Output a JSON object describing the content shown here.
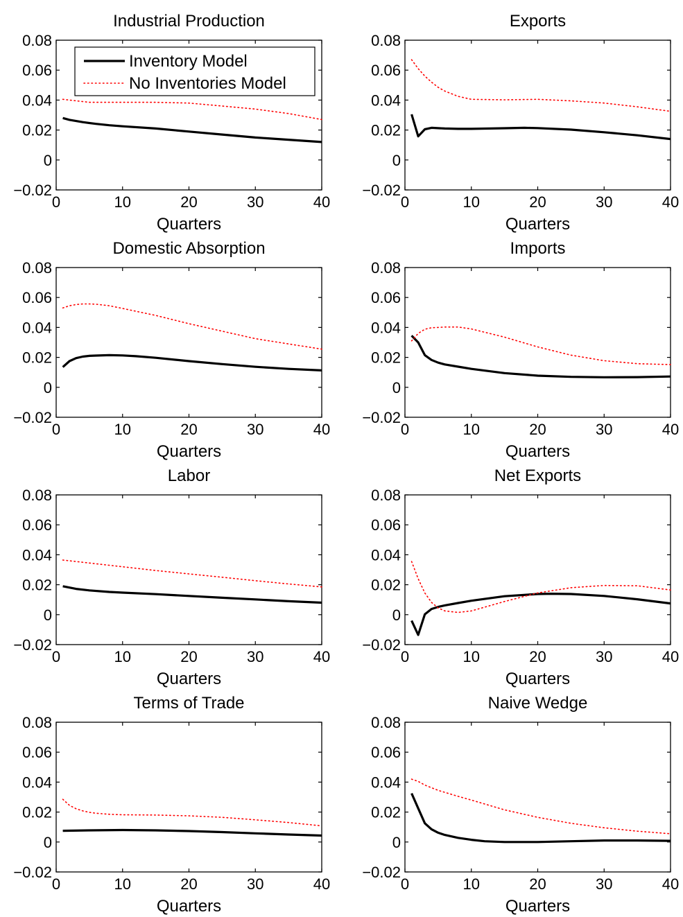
{
  "chart_data": [
    {
      "type": "line",
      "title": "Industrial Production",
      "xlabel": "Quarters",
      "xlim": [
        0,
        40
      ],
      "ylim": [
        -0.02,
        0.08
      ],
      "xticks": [
        "0",
        "10",
        "20",
        "30",
        "40"
      ],
      "yticks": [
        "−0.02",
        "0",
        "0.02",
        "0.04",
        "0.06",
        "0.08"
      ],
      "legend": {
        "position": "top-left",
        "entries": [
          "Inventory Model",
          "No Inventories Model"
        ]
      },
      "series": [
        {
          "name": "Inventory Model",
          "style": "solid",
          "color": "#000000",
          "x": [
            1,
            2,
            4,
            6,
            8,
            10,
            15,
            20,
            25,
            30,
            35,
            40
          ],
          "y": [
            0.028,
            0.0268,
            0.0253,
            0.0241,
            0.0232,
            0.0225,
            0.021,
            0.019,
            0.017,
            0.015,
            0.0135,
            0.012
          ]
        },
        {
          "name": "No Inventories Model",
          "style": "dotted",
          "color": "#ff0000",
          "x": [
            1,
            5,
            10,
            15,
            20,
            25,
            30,
            35,
            40
          ],
          "y": [
            0.0405,
            0.0385,
            0.0385,
            0.0385,
            0.038,
            0.036,
            0.034,
            0.031,
            0.027
          ]
        }
      ]
    },
    {
      "type": "line",
      "title": "Exports",
      "xlabel": "Quarters",
      "xlim": [
        0,
        40
      ],
      "ylim": [
        -0.02,
        0.08
      ],
      "xticks": [
        "0",
        "10",
        "20",
        "30",
        "40"
      ],
      "yticks": [
        "−0.02",
        "0",
        "0.02",
        "0.04",
        "0.06",
        "0.08"
      ],
      "series": [
        {
          "name": "Inventory Model",
          "style": "solid",
          "color": "#000000",
          "x": [
            1,
            2,
            3,
            4,
            6,
            8,
            10,
            15,
            18,
            20,
            25,
            30,
            35,
            40
          ],
          "y": [
            0.0305,
            0.0158,
            0.0205,
            0.0215,
            0.021,
            0.0208,
            0.0208,
            0.0212,
            0.0215,
            0.0213,
            0.0203,
            0.0185,
            0.0165,
            0.014
          ]
        },
        {
          "name": "No Inventories Model",
          "style": "dotted",
          "color": "#ff0000",
          "x": [
            1,
            2,
            3,
            4,
            5,
            6,
            8,
            10,
            15,
            20,
            25,
            30,
            35,
            40
          ],
          "y": [
            0.067,
            0.061,
            0.056,
            0.052,
            0.0485,
            0.046,
            0.0425,
            0.0405,
            0.0402,
            0.0405,
            0.0395,
            0.038,
            0.0355,
            0.0325
          ]
        }
      ]
    },
    {
      "type": "line",
      "title": "Domestic Absorption",
      "xlabel": "Quarters",
      "xlim": [
        0,
        40
      ],
      "ylim": [
        -0.02,
        0.08
      ],
      "xticks": [
        "0",
        "10",
        "20",
        "30",
        "40"
      ],
      "yticks": [
        "−0.02",
        "0",
        "0.02",
        "0.04",
        "0.06",
        "0.08"
      ],
      "series": [
        {
          "name": "Inventory Model",
          "style": "solid",
          "color": "#000000",
          "x": [
            1,
            2,
            3,
            4,
            5,
            6,
            8,
            10,
            12,
            15,
            20,
            25,
            30,
            35,
            40
          ],
          "y": [
            0.0135,
            0.0175,
            0.0195,
            0.0205,
            0.021,
            0.0212,
            0.0215,
            0.0213,
            0.0208,
            0.0197,
            0.0175,
            0.0155,
            0.0137,
            0.0123,
            0.0113
          ]
        },
        {
          "name": "No Inventories Model",
          "style": "dotted",
          "color": "#ff0000",
          "x": [
            1,
            2,
            3,
            4,
            5,
            6,
            8,
            10,
            15,
            20,
            25,
            30,
            35,
            40
          ],
          "y": [
            0.053,
            0.0545,
            0.0553,
            0.0557,
            0.0557,
            0.0555,
            0.0545,
            0.0527,
            0.048,
            0.0425,
            0.0375,
            0.0325,
            0.029,
            0.0255
          ]
        }
      ]
    },
    {
      "type": "line",
      "title": "Imports",
      "xlabel": "Quarters",
      "xlim": [
        0,
        40
      ],
      "ylim": [
        -0.02,
        0.08
      ],
      "xticks": [
        "0",
        "10",
        "20",
        "30",
        "40"
      ],
      "yticks": [
        "−0.02",
        "0",
        "0.02",
        "0.04",
        "0.06",
        "0.08"
      ],
      "series": [
        {
          "name": "Inventory Model",
          "style": "solid",
          "color": "#000000",
          "x": [
            1,
            2,
            3,
            4,
            5,
            6,
            8,
            10,
            15,
            20,
            25,
            30,
            35,
            40
          ],
          "y": [
            0.0345,
            0.03,
            0.0215,
            0.0183,
            0.0165,
            0.0153,
            0.0138,
            0.0123,
            0.0095,
            0.0078,
            0.007,
            0.0067,
            0.0068,
            0.0072
          ]
        },
        {
          "name": "No Inventories Model",
          "style": "dotted",
          "color": "#ff0000",
          "x": [
            1,
            2,
            3,
            4,
            5,
            6,
            8,
            10,
            15,
            20,
            25,
            30,
            35,
            40
          ],
          "y": [
            0.031,
            0.036,
            0.0388,
            0.0398,
            0.04,
            0.0403,
            0.0403,
            0.039,
            0.0335,
            0.027,
            0.0215,
            0.0178,
            0.0158,
            0.0152
          ]
        }
      ]
    },
    {
      "type": "line",
      "title": "Labor",
      "xlabel": "Quarters",
      "xlim": [
        0,
        40
      ],
      "ylim": [
        -0.02,
        0.08
      ],
      "xticks": [
        "0",
        "10",
        "20",
        "30",
        "40"
      ],
      "yticks": [
        "−0.02",
        "0",
        "0.02",
        "0.04",
        "0.06",
        "0.08"
      ],
      "series": [
        {
          "name": "Inventory Model",
          "style": "solid",
          "color": "#000000",
          "x": [
            1,
            3,
            5,
            8,
            10,
            15,
            20,
            25,
            30,
            35,
            40
          ],
          "y": [
            0.019,
            0.0172,
            0.0162,
            0.0152,
            0.0147,
            0.0137,
            0.0125,
            0.0113,
            0.0102,
            0.009,
            0.008
          ]
        },
        {
          "name": "No Inventories Model",
          "style": "dotted",
          "color": "#ff0000",
          "x": [
            1,
            5,
            10,
            15,
            20,
            25,
            30,
            35,
            40
          ],
          "y": [
            0.0365,
            0.0345,
            0.032,
            0.0295,
            0.0272,
            0.025,
            0.0227,
            0.0205,
            0.0185
          ]
        }
      ]
    },
    {
      "type": "line",
      "title": "Net Exports",
      "xlabel": "Quarters",
      "xlim": [
        0,
        40
      ],
      "ylim": [
        -0.02,
        0.08
      ],
      "xticks": [
        "0",
        "10",
        "20",
        "30",
        "40"
      ],
      "yticks": [
        "−0.02",
        "0",
        "0.02",
        "0.04",
        "0.06",
        "0.08"
      ],
      "series": [
        {
          "name": "Inventory Model",
          "style": "solid",
          "color": "#000000",
          "x": [
            1,
            2,
            3,
            4,
            5,
            6,
            8,
            10,
            15,
            20,
            22,
            25,
            30,
            35,
            40
          ],
          "y": [
            -0.004,
            -0.0135,
            0.0003,
            0.0038,
            0.0052,
            0.0062,
            0.0078,
            0.0093,
            0.0123,
            0.0138,
            0.014,
            0.0138,
            0.0125,
            0.0103,
            0.0075
          ]
        },
        {
          "name": "No Inventories Model",
          "style": "dotted",
          "color": "#ff0000",
          "x": [
            1,
            2,
            3,
            4,
            5,
            6,
            8,
            10,
            12,
            15,
            20,
            25,
            30,
            35,
            40
          ],
          "y": [
            0.0355,
            0.024,
            0.0145,
            0.0082,
            0.0045,
            0.0025,
            0.0015,
            0.0025,
            0.005,
            0.0088,
            0.0145,
            0.018,
            0.0195,
            0.0193,
            0.0165
          ]
        }
      ]
    },
    {
      "type": "line",
      "title": "Terms of Trade",
      "xlabel": "Quarters",
      "xlim": [
        0,
        40
      ],
      "ylim": [
        -0.02,
        0.08
      ],
      "xticks": [
        "0",
        "10",
        "20",
        "30",
        "40"
      ],
      "yticks": [
        "−0.02",
        "0",
        "0.02",
        "0.04",
        "0.06",
        "0.08"
      ],
      "series": [
        {
          "name": "Inventory Model",
          "style": "solid",
          "color": "#000000",
          "x": [
            1,
            5,
            10,
            15,
            20,
            25,
            30,
            35,
            40
          ],
          "y": [
            0.0075,
            0.0078,
            0.008,
            0.0078,
            0.0073,
            0.0066,
            0.0058,
            0.005,
            0.0043
          ]
        },
        {
          "name": "No Inventories Model",
          "style": "dotted",
          "color": "#ff0000",
          "x": [
            1,
            2,
            3,
            4,
            5,
            6,
            8,
            10,
            15,
            20,
            25,
            30,
            35,
            40
          ],
          "y": [
            0.0285,
            0.0245,
            0.0222,
            0.0208,
            0.0198,
            0.0192,
            0.0185,
            0.0182,
            0.018,
            0.0175,
            0.0165,
            0.0148,
            0.013,
            0.0108
          ]
        }
      ]
    },
    {
      "type": "line",
      "title": "Naive Wedge",
      "xlabel": "Quarters",
      "xlim": [
        0,
        40
      ],
      "ylim": [
        -0.02,
        0.08
      ],
      "xticks": [
        "0",
        "10",
        "20",
        "30",
        "40"
      ],
      "yticks": [
        "−0.02",
        "0",
        "0.02",
        "0.04",
        "0.06",
        "0.08"
      ],
      "series": [
        {
          "name": "Inventory Model",
          "style": "solid",
          "color": "#000000",
          "x": [
            1,
            2,
            3,
            4,
            5,
            6,
            8,
            10,
            12,
            15,
            20,
            25,
            30,
            35,
            40
          ],
          "y": [
            0.0325,
            0.0225,
            0.0125,
            0.0085,
            0.0062,
            0.0047,
            0.0028,
            0.0015,
            0.0005,
            0.0,
            0.0,
            0.0005,
            0.001,
            0.001,
            0.0008
          ]
        },
        {
          "name": "No Inventories Model",
          "style": "dotted",
          "color": "#ff0000",
          "x": [
            1,
            2,
            3,
            5,
            8,
            10,
            15,
            20,
            25,
            30,
            35,
            40
          ],
          "y": [
            0.042,
            0.0405,
            0.038,
            0.0345,
            0.0305,
            0.028,
            0.0215,
            0.0165,
            0.0125,
            0.0095,
            0.0072,
            0.0055
          ]
        }
      ]
    }
  ]
}
